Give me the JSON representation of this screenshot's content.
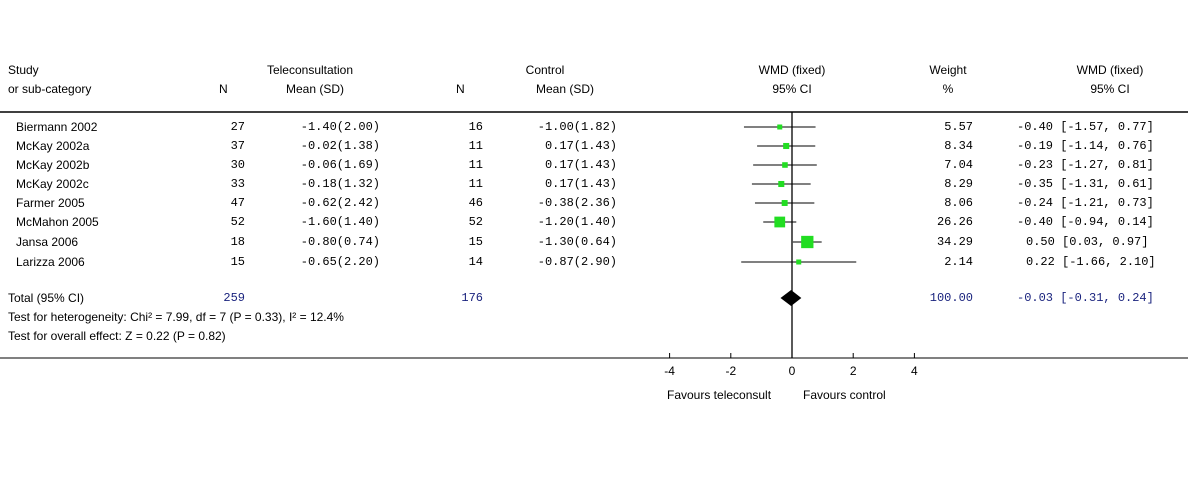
{
  "headers": {
    "study": "Study",
    "subcategory": "or sub-category",
    "group1": "Teleconsultation",
    "group2": "Control",
    "n": "N",
    "mean_sd": "Mean (SD)",
    "effect": "WMD (fixed)",
    "ci": "95% CI",
    "weight": "Weight",
    "pct": "%"
  },
  "studies": [
    {
      "name": "Biermann 2002",
      "n1": "27",
      "m1": "-1.40(2.00)",
      "n2": "16",
      "m2": "-1.00(1.82)",
      "weight": "5.57",
      "wmd_text": "-0.40 [-1.57, 0.77]"
    },
    {
      "name": "McKay 2002a",
      "n1": "37",
      "m1": "-0.02(1.38)",
      "n2": "11",
      "m2": "0.17(1.43)",
      "weight": "8.34",
      "wmd_text": "-0.19 [-1.14, 0.76]"
    },
    {
      "name": "McKay 2002b",
      "n1": "30",
      "m1": "-0.06(1.69)",
      "n2": "11",
      "m2": "0.17(1.43)",
      "weight": "7.04",
      "wmd_text": "-0.23 [-1.27, 0.81]"
    },
    {
      "name": "McKay 2002c",
      "n1": "33",
      "m1": "-0.18(1.32)",
      "n2": "11",
      "m2": "0.17(1.43)",
      "weight": "8.29",
      "wmd_text": "-0.35 [-1.31, 0.61]"
    },
    {
      "name": "Farmer 2005",
      "n1": "47",
      "m1": "-0.62(2.42)",
      "n2": "46",
      "m2": "-0.38(2.36)",
      "weight": "8.06",
      "wmd_text": "-0.24 [-1.21, 0.73]"
    },
    {
      "name": "McMahon 2005",
      "n1": "52",
      "m1": "-1.60(1.40)",
      "n2": "52",
      "m2": "-1.20(1.40)",
      "weight": "26.26",
      "wmd_text": "-0.40 [-0.94, 0.14]"
    },
    {
      "name": "Jansa 2006",
      "n1": "18",
      "m1": "-0.80(0.74)",
      "n2": "15",
      "m2": "-1.30(0.64)",
      "weight": "34.29",
      "wmd_text": "0.50 [0.03, 0.97]"
    },
    {
      "name": "Larizza 2006",
      "n1": "15",
      "m1": "-0.65(2.20)",
      "n2": "14",
      "m2": "-0.87(2.90)",
      "weight": "2.14",
      "wmd_text": "0.22 [-1.66, 2.10]"
    }
  ],
  "total": {
    "label": "Total (95% CI)",
    "n1": "259",
    "n2": "176",
    "weight": "100.00",
    "wmd_text": "-0.03 [-0.31, 0.24]"
  },
  "heterogeneity": "Test for heterogeneity: Chi² = 7.99, df = 7 (P = 0.33), I² = 12.4%",
  "overall": "Test for overall effect: Z = 0.22 (P = 0.82)",
  "favours_left": "Favours teleconsult",
  "favours_right": "Favours control",
  "colors": {
    "box": "#22dd22",
    "totals": "#1a237e"
  },
  "chart_data": {
    "type": "forest",
    "xlabel_left": "Favours teleconsult",
    "xlabel_right": "Favours control",
    "xlim": [
      -4,
      4
    ],
    "ticks": [
      "-4",
      "-2",
      "0",
      "2",
      "4"
    ],
    "series": [
      {
        "name": "Biermann 2002",
        "est": -0.4,
        "lo": -1.57,
        "hi": 0.77,
        "weight": 5.57
      },
      {
        "name": "McKay 2002a",
        "est": -0.19,
        "lo": -1.14,
        "hi": 0.76,
        "weight": 8.34
      },
      {
        "name": "McKay 2002b",
        "est": -0.23,
        "lo": -1.27,
        "hi": 0.81,
        "weight": 7.04
      },
      {
        "name": "McKay 2002c",
        "est": -0.35,
        "lo": -1.31,
        "hi": 0.61,
        "weight": 8.29
      },
      {
        "name": "Farmer 2005",
        "est": -0.24,
        "lo": -1.21,
        "hi": 0.73,
        "weight": 8.06
      },
      {
        "name": "McMahon 2005",
        "est": -0.4,
        "lo": -0.94,
        "hi": 0.14,
        "weight": 26.26
      },
      {
        "name": "Jansa 2006",
        "est": 0.5,
        "lo": 0.03,
        "hi": 0.97,
        "weight": 34.29
      },
      {
        "name": "Larizza 2006",
        "est": 0.22,
        "lo": -1.66,
        "hi": 2.1,
        "weight": 2.14
      }
    ],
    "pooled": {
      "est": -0.03,
      "lo": -0.31,
      "hi": 0.24
    }
  }
}
